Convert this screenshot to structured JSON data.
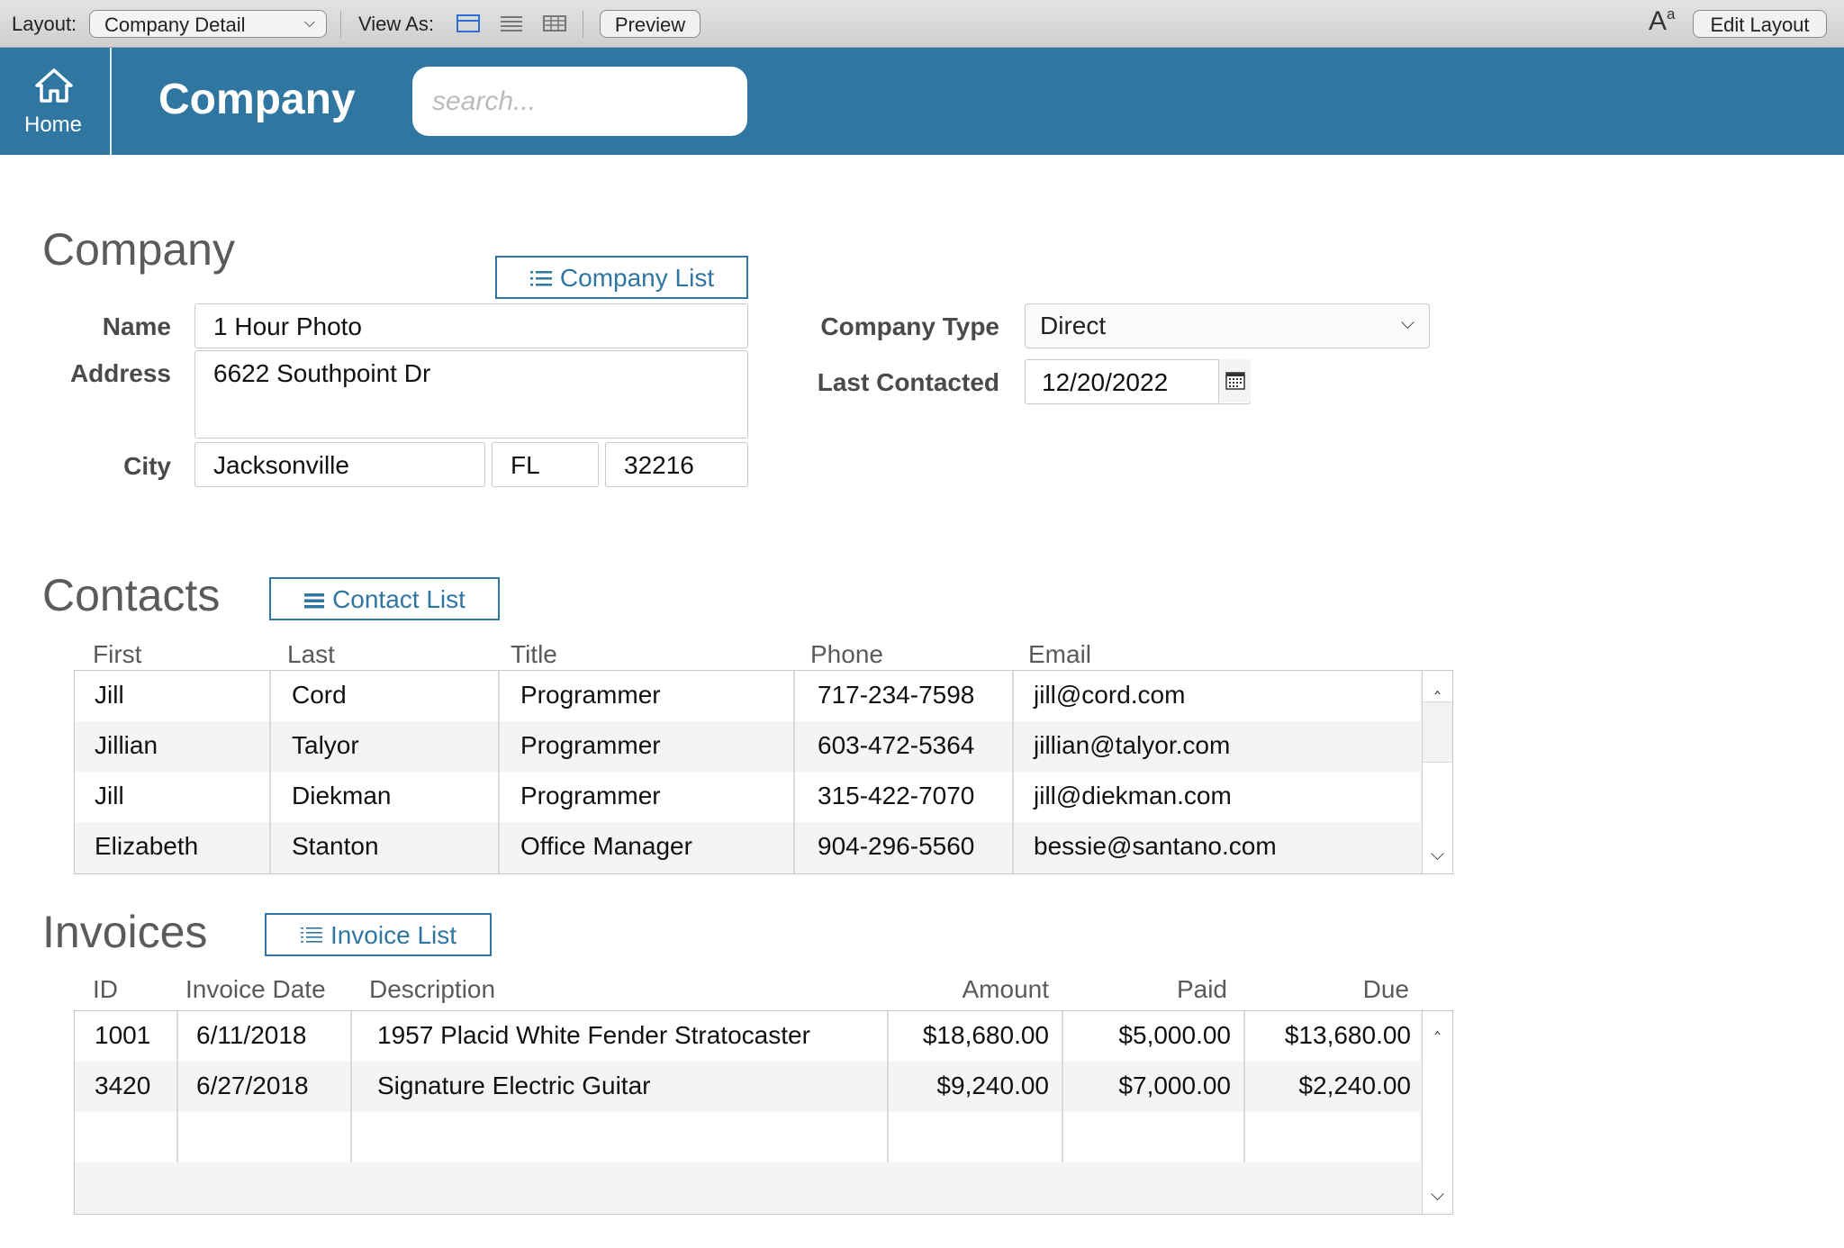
{
  "toolbar": {
    "layout_label": "Layout:",
    "layout_value": "Company Detail",
    "view_as_label": "View As:",
    "preview_label": "Preview",
    "font_size_glyph": "A",
    "font_size_sup": "a",
    "edit_layout_label": "Edit Layout"
  },
  "header": {
    "home_label": "Home",
    "title": "Company",
    "search_placeholder": "search..."
  },
  "company": {
    "heading": "Company",
    "list_button": "Company List",
    "name_label": "Name",
    "name_value": "1 Hour Photo",
    "address_label": "Address",
    "address_value": "6622 Southpoint Dr",
    "city_label": "City",
    "city_value": "Jacksonville",
    "state_value": "FL",
    "zip_value": "32216",
    "type_label": "Company Type",
    "type_value": "Direct",
    "last_contacted_label": "Last Contacted",
    "last_contacted_value": "12/20/2022"
  },
  "contacts": {
    "heading": "Contacts",
    "list_button": "Contact List",
    "columns": [
      "First",
      "Last",
      "Title",
      "Phone",
      "Email"
    ],
    "rows": [
      {
        "first": "Jill",
        "last": "Cord",
        "title": "Programmer",
        "phone": "717-234-7598",
        "email": "jill@cord.com"
      },
      {
        "first": "Jillian",
        "last": "Talyor",
        "title": "Programmer",
        "phone": "603-472-5364",
        "email": "jillian@talyor.com"
      },
      {
        "first": "Jill",
        "last": "Diekman",
        "title": "Programmer",
        "phone": "315-422-7070",
        "email": "jill@diekman.com"
      },
      {
        "first": "Elizabeth",
        "last": "Stanton",
        "title": "Office Manager",
        "phone": "904-296-5560",
        "email": "bessie@santano.com"
      }
    ]
  },
  "invoices": {
    "heading": "Invoices",
    "list_button": "Invoice List",
    "columns": [
      "ID",
      "Invoice Date",
      "Description",
      "Amount",
      "Paid",
      "Due"
    ],
    "rows": [
      {
        "id": "1001",
        "date": "6/11/2018",
        "description": "1957 Placid White Fender Stratocaster",
        "amount": "$18,680.00",
        "paid": "$5,000.00",
        "due": "$13,680.00"
      },
      {
        "id": "3420",
        "date": "6/27/2018",
        "description": "Signature Electric Guitar",
        "amount": "$9,240.00",
        "paid": "$7,000.00",
        "due": "$2,240.00"
      }
    ]
  },
  "colors": {
    "header_blue": "#2f76a0",
    "accent_blue": "#2f76a0",
    "heading_gray": "#5b5b5b"
  },
  "icons": {
    "home": "home-icon",
    "list": "list-icon",
    "calendar": "calendar-icon",
    "chevron": "chevron-down-icon",
    "form_view": "form-view-icon",
    "list_view": "list-view-icon",
    "table_view": "table-view-icon",
    "scroll_up": "scroll-up-icon",
    "scroll_down": "scroll-down-icon"
  }
}
